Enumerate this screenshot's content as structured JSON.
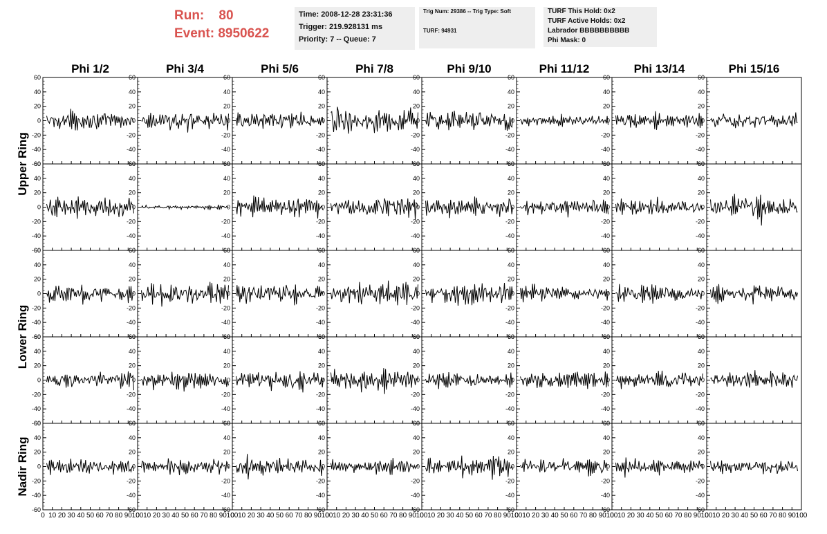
{
  "header": {
    "run_label": "Run:",
    "run_value": "80",
    "event_label": "Event:",
    "event_value": "8950622"
  },
  "info_time": {
    "time": "Time: 2008-12-28 23:31:36",
    "trigger": "Trigger: 219.928131 ms",
    "priority": "Priority: 7 -- Queue: 7"
  },
  "info_trig": {
    "trig_line": "Trig Num: 29386 -- Trig Type: Soft",
    "turf_line": "TURF: 94931"
  },
  "info_turf": {
    "this_hold": "TURF This Hold: 0x2",
    "active_holds": "TURF Active Holds: 0x2",
    "labrador": "Labrador BBBBBBBBBB",
    "phi_mask": "Phi Mask: 0"
  },
  "colors": {
    "header_red": "#d9534f",
    "panel_bg": "#eeeeee",
    "trace": "#000000"
  },
  "chart_data": {
    "type": "line",
    "layout": "grid of waveform panels, 5 rows x 8 columns",
    "column_titles": [
      "Phi 1/2",
      "Phi 3/4",
      "Phi 5/6",
      "Phi 7/8",
      "Phi 9/10",
      "Phi 11/12",
      "Phi 13/14",
      "Phi 15/16"
    ],
    "ring_labels": [
      {
        "text": "Upper Ring",
        "rows": [
          0,
          1
        ]
      },
      {
        "text": "Lower Ring",
        "rows": [
          2,
          3
        ]
      },
      {
        "text": "Nadir Ring",
        "rows": [
          4
        ]
      }
    ],
    "ylim": [
      -60,
      60
    ],
    "yticks": [
      -60,
      -40,
      -20,
      0,
      20,
      40,
      60
    ],
    "xlim": [
      0,
      100
    ],
    "xticks": [
      0,
      10,
      20,
      30,
      40,
      50,
      60,
      70,
      80,
      90,
      100
    ],
    "samples_per_trace": 95,
    "amplitudes": [
      [
        18,
        20,
        18,
        28,
        22,
        10,
        16,
        16
      ],
      [
        22,
        4,
        20,
        22,
        20,
        16,
        16,
        22
      ],
      [
        20,
        20,
        20,
        22,
        20,
        16,
        18,
        18
      ],
      [
        16,
        20,
        20,
        22,
        14,
        16,
        16,
        16
      ],
      [
        18,
        16,
        18,
        16,
        20,
        16,
        16,
        14
      ]
    ],
    "grid": false,
    "legend": "none"
  }
}
